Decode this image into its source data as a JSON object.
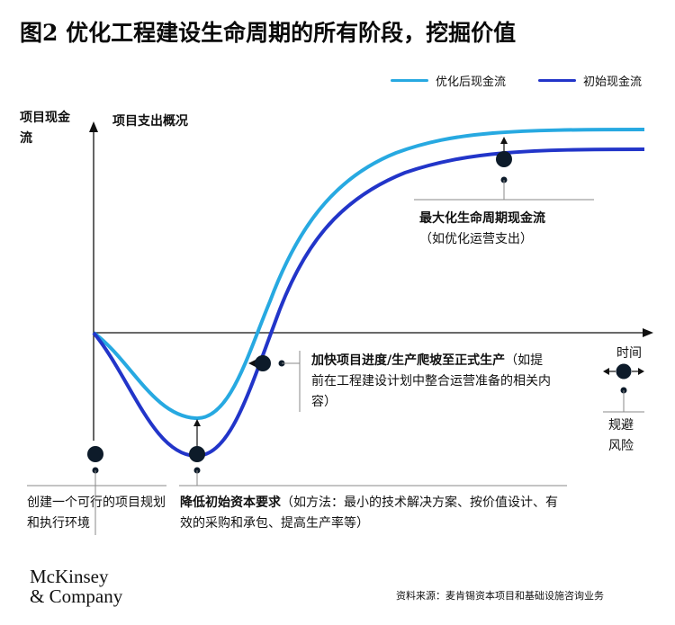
{
  "title": "图2 优化工程建设生命周期的所有阶段，挖掘价值",
  "legend": [
    {
      "label": "优化后现金流",
      "color": "#27a9e1"
    },
    {
      "label": "初始现金流",
      "color": "#2235c9"
    }
  ],
  "y_axis_label": "项目现金流",
  "subtitle": "项目支出概况",
  "x_axis_label": "时间",
  "risk_label": "规避风险",
  "annotations": {
    "lifecycle_title": "最大化生命周期现金流",
    "lifecycle_detail": "（如优化运营支出）",
    "accelerate_title": "加快项目进度/生产爬坡至正式生产",
    "accelerate_detail": "（如提前在工程建设计划中整合运营准备的相关内容）",
    "plan": "创建一个可行的项目规划和执行环境",
    "reduce_title": "降低初始资本要求",
    "reduce_detail": "（如方法：最小的技术解决方案、按价值设计、有效的采购和承包、提高生产率等）"
  },
  "logo": {
    "line1": "McKinsey",
    "line2": "& Company"
  },
  "source": "资料来源：麦肯锡资本项目和基础设施咨询业务",
  "colors": {
    "optimized": "#27a9e1",
    "initial": "#2235c9",
    "axis": "#111111",
    "marker": "#0d1b2a"
  }
}
